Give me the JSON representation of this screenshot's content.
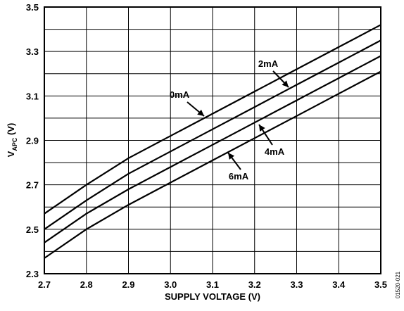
{
  "chart_data": {
    "type": "line",
    "xlabel": "SUPPLY VOLTAGE (V)",
    "ylabel": {
      "main": "V",
      "subscript": "APC",
      "unit": " (V)"
    },
    "xlim": [
      2.7,
      3.5
    ],
    "ylim": [
      2.3,
      3.5
    ],
    "x_ticks": [
      "2.7",
      "2.8",
      "2.9",
      "3.0",
      "3.1",
      "3.2",
      "3.3",
      "3.4",
      "3.5"
    ],
    "y_ticks": [
      "2.3",
      "2.5",
      "2.7",
      "2.9",
      "3.1",
      "3.3",
      "3.5"
    ],
    "grid": true,
    "x": [
      2.7,
      2.8,
      2.9,
      3.0,
      3.1,
      3.2,
      3.3,
      3.4,
      3.5
    ],
    "series": [
      {
        "name": "0mA",
        "values": [
          2.57,
          2.7,
          2.82,
          2.92,
          3.02,
          3.12,
          3.22,
          3.32,
          3.42
        ]
      },
      {
        "name": "2mA",
        "values": [
          2.5,
          2.63,
          2.75,
          2.85,
          2.95,
          3.05,
          3.15,
          3.25,
          3.35
        ]
      },
      {
        "name": "4mA",
        "values": [
          2.44,
          2.57,
          2.68,
          2.78,
          2.88,
          2.98,
          3.08,
          3.18,
          3.28
        ]
      },
      {
        "name": "6mA",
        "values": [
          2.37,
          2.5,
          2.61,
          2.71,
          2.81,
          2.91,
          3.01,
          3.11,
          3.21
        ]
      }
    ],
    "figure_id": "01520-021"
  }
}
